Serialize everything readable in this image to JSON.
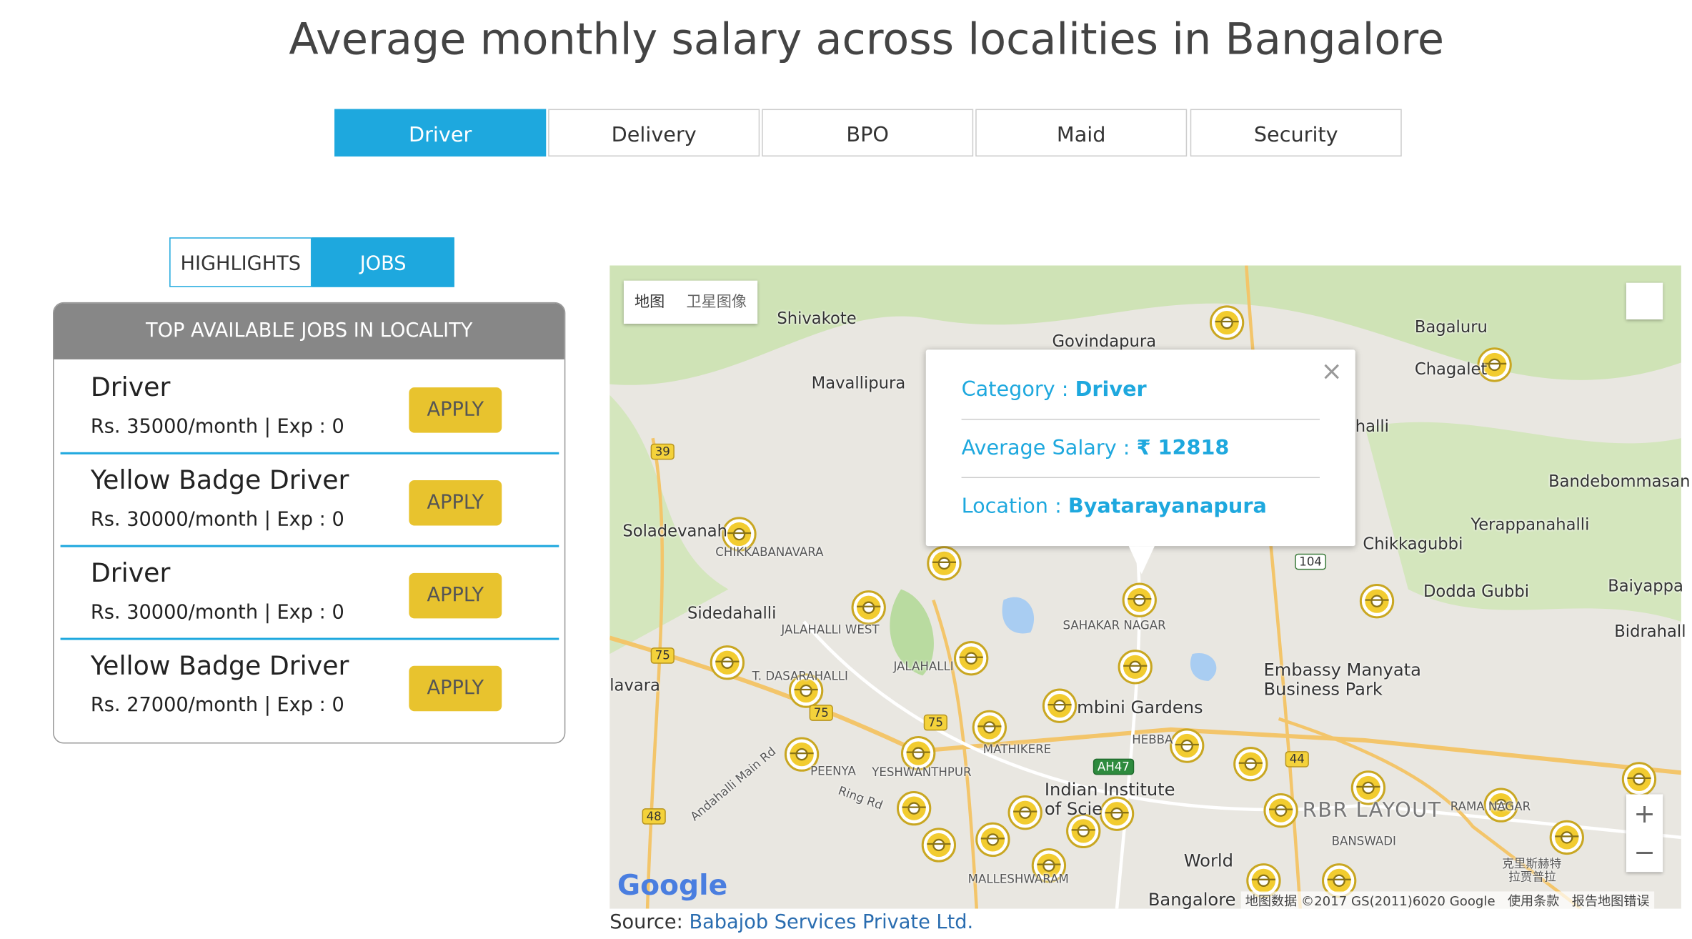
{
  "header": {
    "title": "Average monthly salary across localities in Bangalore"
  },
  "tabs": [
    "Driver",
    "Delivery",
    "BPO",
    "Maid",
    "Security"
  ],
  "subtabs": [
    "HIGHLIGHTS",
    "JOBS"
  ],
  "panel": {
    "title": "TOP AVAILABLE JOBS IN LOCALITY",
    "jobs": [
      {
        "title": "Driver",
        "detail": "Rs. 35000/month | Exp : 0",
        "button": "APPLY"
      },
      {
        "title": "Yellow Badge Driver",
        "detail": "Rs. 30000/month | Exp : 0",
        "button": "APPLY"
      },
      {
        "title": "Driver",
        "detail": "Rs. 30000/month | Exp : 0",
        "button": "APPLY"
      },
      {
        "title": "Yellow Badge Driver",
        "detail": "Rs. 27000/month | Exp : 0",
        "button": "APPLY"
      }
    ]
  },
  "map": {
    "type_buttons": [
      "地图",
      "卫星图像"
    ],
    "labels": [
      "Shivakote",
      "Govindapura",
      "Bagaluru",
      "Chagalet",
      "Mavallipura",
      "halli",
      "Bandebommasan",
      "Yerappanahalli",
      "Soladevanah",
      "Chikkagubbi",
      "CHIKKABANAVARA",
      "Dodda Gubbi",
      "Baiyappa",
      "Sidedahalli",
      "JALAHALLI WEST",
      "SAHAKAR NAGAR",
      "Bidrahall",
      "Embassy Manyata",
      "Business Park",
      "T. DASARAHALLI",
      "JALAHALLI",
      "lavara",
      "mbini Gardens",
      "MATHIKERE",
      "HEBBA",
      "PEENYA",
      "YESHWANTHPUR",
      "Indian Institute",
      "of Scie",
      "RBR LAYOUT",
      "RAMA NAGAR",
      "BANSWADI",
      "World",
      "Bangalore",
      "MALLESHWARAM",
      "Andahalli Main Rd",
      "Ring Rd",
      "克里斯赫特",
      "拉贾普拉"
    ],
    "shields": [
      "39",
      "75",
      "75",
      "75",
      "104",
      "48",
      "AH47",
      "44"
    ],
    "logo": "Google",
    "attribution": "地图数据 ©2017 GS(2011)6020 Google",
    "terms": "使用条款",
    "report": "报告地图错误",
    "zoom": [
      "+",
      "−"
    ],
    "popup": {
      "close": "×",
      "category_label": "Category : ",
      "category": "Driver",
      "salary_label": "Average Salary : ",
      "salary": "₹ 12818",
      "location_label": "Location : ",
      "location": "Byatarayanapura"
    }
  },
  "source": {
    "label": "Source:",
    "link": "Babajob Services Private Ltd."
  }
}
